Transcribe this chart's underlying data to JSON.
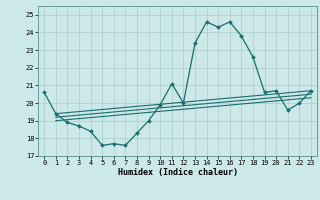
{
  "title": "",
  "xlabel": "Humidex (Indice chaleur)",
  "background_color": "#cce8e8",
  "grid_color": "#aacccc",
  "line_color": "#1a6e6e",
  "xlim": [
    -0.5,
    23.5
  ],
  "ylim": [
    17,
    25.5
  ],
  "yticks": [
    17,
    18,
    19,
    20,
    21,
    22,
    23,
    24,
    25
  ],
  "xticks": [
    0,
    1,
    2,
    3,
    4,
    5,
    6,
    7,
    8,
    9,
    10,
    11,
    12,
    13,
    14,
    15,
    16,
    17,
    18,
    19,
    20,
    21,
    22,
    23
  ],
  "main": [
    20.6,
    19.4,
    18.9,
    18.7,
    18.4,
    17.6,
    17.7,
    17.6,
    18.3,
    19.0,
    19.9,
    21.1,
    20.0,
    23.4,
    24.6,
    24.3,
    24.6,
    23.8,
    22.6,
    20.6,
    20.7,
    19.6,
    20.0,
    20.7
  ],
  "line1_start": 19.4,
  "line1_end": 20.7,
  "line2_start": 19.2,
  "line2_end": 20.5,
  "line3_start": 19.0,
  "line3_end": 20.3
}
